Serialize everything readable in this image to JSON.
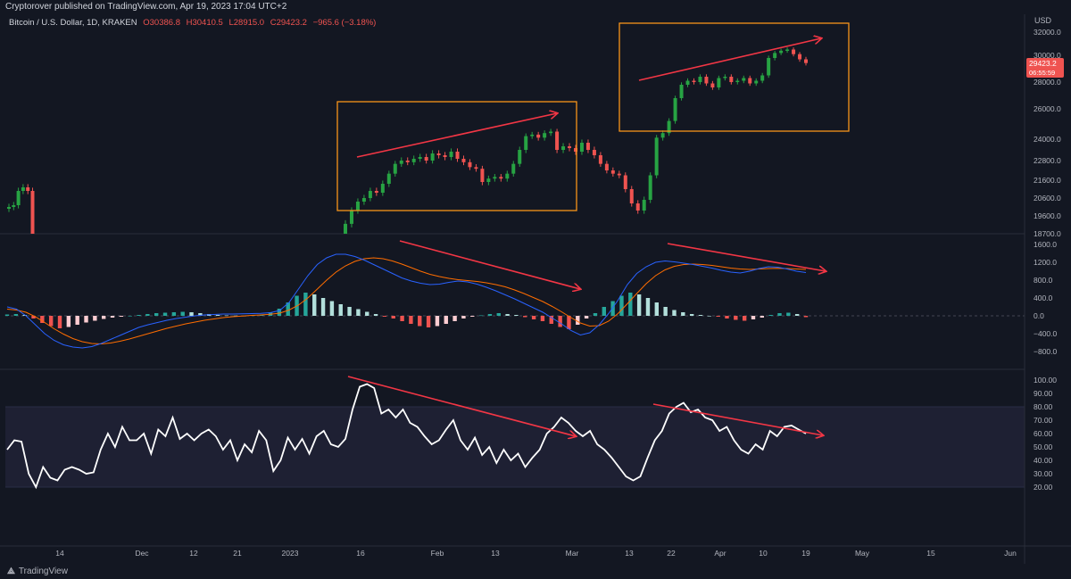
{
  "banner": {
    "text": "Cryptorover published on TradingView.com, Apr 19, 2023 17:04 UTC+2"
  },
  "footer": {
    "brand": "TradingView"
  },
  "colors": {
    "bg": "#131722",
    "up": "#26a69a",
    "down": "#ef5350",
    "candle_up": "#27a343",
    "annotation": "#f23645",
    "box": "#f7931a",
    "macd": "#2962ff",
    "signal": "#ff6d00",
    "rsi": "#ffffff"
  },
  "chart_data": [
    {
      "type": "candlestick",
      "header": {
        "symbol": "Bitcoin / U.S. Dollar, 1D, KRAKEN",
        "o": "O30386.8",
        "h": "H30410.5",
        "l": "L28915.0",
        "c": "C29423.2",
        "change": "−965.6 (−3.18%)"
      },
      "y_axis_unit": "USD",
      "y_ticks": [
        "32000.0",
        "30000.0",
        "28000.0",
        "26000.0",
        "24000.0",
        "22800.0",
        "21600.0",
        "20600.0",
        "19600.0",
        "18700.0"
      ],
      "last_price_label": "29423.2",
      "countdown_label": "06:55:59",
      "x_ticks": [
        "14",
        "Dec",
        "12",
        "21",
        "2023",
        "16",
        "Feb",
        "13",
        "Mar",
        "13",
        "22",
        "Apr",
        "10",
        "19",
        "May",
        "15",
        "Jun"
      ],
      "note": "price candles rendered from sampled closes",
      "closes": [
        20100,
        20200,
        21000,
        21200,
        21000,
        18700,
        19200,
        19900,
        20400,
        20600,
        21000,
        20900,
        21400,
        22000,
        22600,
        22800,
        22700,
        22900,
        23000,
        22800,
        23200,
        23100,
        23000,
        23300,
        22900,
        22700,
        22400,
        22300,
        21500,
        21700,
        21800,
        21700,
        22000,
        22600,
        23400,
        24200,
        24300,
        24100,
        24400,
        24500,
        23400,
        23600,
        23500,
        23300,
        23800,
        23400,
        23100,
        22600,
        22200,
        22000,
        21900,
        21100,
        20300,
        19900,
        20500,
        21900,
        24100,
        24400,
        25200,
        26800,
        27800,
        28100,
        28000,
        28400,
        27900,
        27600,
        28300,
        28400,
        28000,
        28100,
        28300,
        27900,
        28100,
        28500,
        29800,
        30200,
        30400,
        30500,
        30100,
        29700,
        29423
      ],
      "highlight_boxes": [
        {
          "label": "",
          "x_start": "Jan 13",
          "x_end": "Feb 28"
        },
        {
          "label": "",
          "x_start": "Mar 13",
          "x_end": "Apr 25"
        }
      ]
    },
    {
      "type": "histogram_line",
      "name": "MACD",
      "y_ticks": [
        "1600.0",
        "1200.0",
        "800.0",
        "400.0",
        "0.0",
        "−400.0",
        "−800.0"
      ],
      "histogram": [
        30,
        40,
        20,
        -60,
        -160,
        -230,
        -280,
        -250,
        -200,
        -150,
        -110,
        -70,
        -40,
        -20,
        0,
        20,
        40,
        60,
        70,
        80,
        90,
        80,
        60,
        40,
        20,
        10,
        5,
        0,
        10,
        30,
        80,
        160,
        300,
        450,
        520,
        480,
        400,
        330,
        260,
        200,
        150,
        90,
        40,
        -20,
        -60,
        -120,
        -180,
        -230,
        -260,
        -230,
        -180,
        -120,
        -60,
        -20,
        10,
        40,
        60,
        40,
        20,
        -30,
        -80,
        -120,
        -180,
        -250,
        -300,
        -200,
        -60,
        60,
        200,
        330,
        450,
        520,
        480,
        400,
        300,
        200,
        130,
        80,
        40,
        20,
        0,
        -20,
        -60,
        -90,
        -110,
        -80,
        -40,
        20,
        60,
        70,
        40,
        -30
      ],
      "macd_line": [
        200,
        150,
        0,
        -200,
        -400,
        -550,
        -650,
        -700,
        -720,
        -690,
        -620,
        -530,
        -440,
        -350,
        -260,
        -200,
        -150,
        -100,
        -60,
        -30,
        0,
        20,
        30,
        40,
        40,
        45,
        50,
        55,
        70,
        120,
        300,
        600,
        900,
        1150,
        1300,
        1380,
        1380,
        1330,
        1250,
        1150,
        1050,
        950,
        850,
        780,
        730,
        700,
        710,
        750,
        780,
        760,
        710,
        640,
        560,
        470,
        380,
        280,
        180,
        80,
        -50,
        -180,
        -330,
        -430,
        -380,
        -200,
        50,
        350,
        700,
        950,
        1100,
        1200,
        1230,
        1210,
        1180,
        1150,
        1110,
        1070,
        1020,
        980,
        960,
        1000,
        1060,
        1100,
        1090,
        1050,
        1000,
        970
      ],
      "signal_line": [
        150,
        130,
        80,
        -20,
        -150,
        -290,
        -410,
        -510,
        -580,
        -620,
        -630,
        -610,
        -570,
        -520,
        -460,
        -400,
        -340,
        -280,
        -230,
        -180,
        -140,
        -100,
        -70,
        -40,
        -20,
        -5,
        10,
        20,
        35,
        60,
        130,
        240,
        400,
        600,
        800,
        980,
        1120,
        1220,
        1280,
        1300,
        1280,
        1230,
        1160,
        1080,
        1000,
        930,
        880,
        840,
        810,
        790,
        770,
        740,
        700,
        650,
        580,
        500,
        410,
        320,
        210,
        90,
        -40,
        -160,
        -230,
        -220,
        -120,
        50,
        270,
        500,
        720,
        900,
        1030,
        1110,
        1150,
        1160,
        1150,
        1130,
        1100,
        1070,
        1050,
        1040,
        1050,
        1060,
        1065,
        1060,
        1050,
        1040
      ]
    },
    {
      "type": "line",
      "name": "RSI",
      "y_ticks": [
        "100.00",
        "90.00",
        "80.00",
        "70.00",
        "60.00",
        "50.00",
        "40.00",
        "30.00",
        "20.00"
      ],
      "band": [
        20,
        80
      ],
      "values": [
        48,
        55,
        54,
        30,
        20,
        35,
        27,
        25,
        33,
        35,
        33,
        30,
        31,
        48,
        60,
        50,
        65,
        55,
        55,
        60,
        45,
        63,
        58,
        72,
        56,
        60,
        55,
        60,
        63,
        58,
        48,
        55,
        40,
        52,
        46,
        62,
        55,
        32,
        40,
        57,
        48,
        56,
        45,
        58,
        62,
        52,
        50,
        56,
        78,
        95,
        97,
        94,
        75,
        78,
        72,
        78,
        68,
        65,
        58,
        52,
        55,
        63,
        70,
        55,
        48,
        57,
        44,
        50,
        38,
        48,
        40,
        45,
        35,
        42,
        48,
        60,
        65,
        72,
        68,
        62,
        58,
        62,
        52,
        48,
        42,
        35,
        28,
        25,
        28,
        42,
        55,
        62,
        75,
        80,
        83,
        76,
        78,
        72,
        70,
        62,
        65,
        55,
        48,
        45,
        52,
        48,
        62,
        58,
        65,
        66,
        63,
        60
      ]
    }
  ]
}
